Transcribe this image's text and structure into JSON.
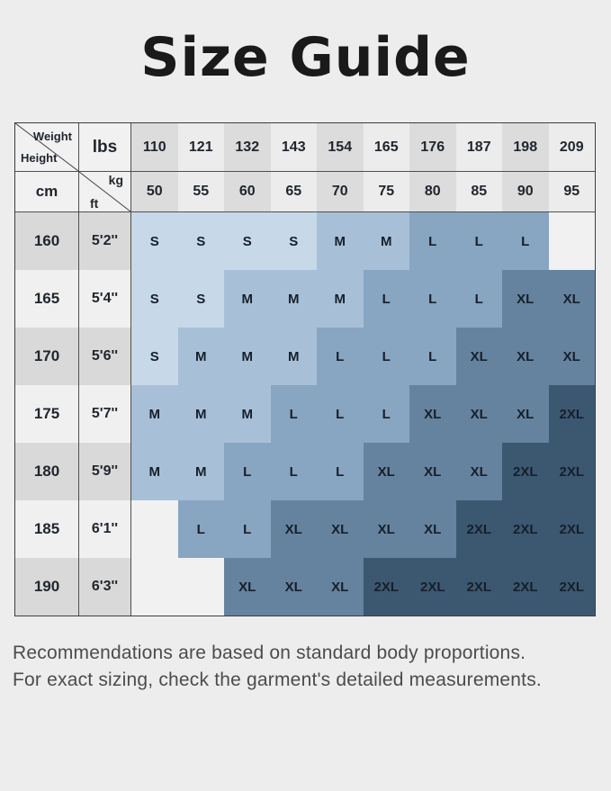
{
  "title": "Size Guide",
  "table": {
    "corner": {
      "top_label": "Weight",
      "bottom_label": "Height"
    },
    "weight_unit_label": "lbs",
    "height_unit_label": "cm",
    "kg_label": "kg",
    "ft_label": "ft",
    "weights_lbs": [
      "110",
      "121",
      "132",
      "143",
      "154",
      "165",
      "176",
      "187",
      "198",
      "209"
    ],
    "weights_kg": [
      "50",
      "55",
      "60",
      "65",
      "70",
      "75",
      "80",
      "85",
      "90",
      "95"
    ],
    "rows": [
      {
        "cm": "160",
        "ft": "5'2''",
        "sizes": [
          "S",
          "S",
          "S",
          "S",
          "M",
          "M",
          "L",
          "L",
          "L",
          ""
        ]
      },
      {
        "cm": "165",
        "ft": "5'4''",
        "sizes": [
          "S",
          "S",
          "M",
          "M",
          "M",
          "L",
          "L",
          "L",
          "XL",
          "XL"
        ]
      },
      {
        "cm": "170",
        "ft": "5'6''",
        "sizes": [
          "S",
          "M",
          "M",
          "M",
          "L",
          "L",
          "L",
          "XL",
          "XL",
          "XL"
        ]
      },
      {
        "cm": "175",
        "ft": "5'7''",
        "sizes": [
          "M",
          "M",
          "M",
          "L",
          "L",
          "L",
          "XL",
          "XL",
          "XL",
          "2XL"
        ]
      },
      {
        "cm": "180",
        "ft": "5'9''",
        "sizes": [
          "M",
          "M",
          "L",
          "L",
          "L",
          "XL",
          "XL",
          "XL",
          "2XL",
          "2XL"
        ]
      },
      {
        "cm": "185",
        "ft": "6'1''",
        "sizes": [
          "",
          "L",
          "L",
          "XL",
          "XL",
          "XL",
          "XL",
          "2XL",
          "2XL",
          "2XL"
        ]
      },
      {
        "cm": "190",
        "ft": "6'3''",
        "sizes": [
          "",
          "",
          "XL",
          "XL",
          "XL",
          "2XL",
          "2XL",
          "2XL",
          "2XL",
          "2XL"
        ]
      }
    ],
    "colors": {
      "size_S": "#c7d8e8",
      "size_M": "#a8c0d7",
      "size_L": "#88a5c1",
      "size_XL": "#65839e",
      "size_2XL": "#3c5871",
      "empty_cell": "#f1f1f1",
      "header_stripe_dark": "#dcdcdc",
      "header_stripe_light": "#ececec",
      "left_row_dark": "#d9d9d9",
      "left_row_light": "#f0f0f0",
      "header_left_bg": "#f1f1f1"
    }
  },
  "footer": {
    "line1": "Recommendations are based on standard body proportions.",
    "line2": "For exact sizing, check the garment's detailed measurements."
  },
  "chart_data": {
    "type": "table",
    "title": "Size Guide",
    "weight_lbs": [
      110,
      121,
      132,
      143,
      154,
      165,
      176,
      187,
      198,
      209
    ],
    "weight_kg": [
      50,
      55,
      60,
      65,
      70,
      75,
      80,
      85,
      90,
      95
    ],
    "height_cm": [
      160,
      165,
      170,
      175,
      180,
      185,
      190
    ],
    "height_ft": [
      "5'2''",
      "5'4''",
      "5'6''",
      "5'7''",
      "5'9''",
      "6'1''",
      "6'3''"
    ],
    "legend": [
      "S",
      "M",
      "L",
      "XL",
      "2XL"
    ],
    "size_matrix": [
      [
        "S",
        "S",
        "S",
        "S",
        "M",
        "M",
        "L",
        "L",
        "L",
        null
      ],
      [
        "S",
        "S",
        "M",
        "M",
        "M",
        "L",
        "L",
        "L",
        "XL",
        "XL"
      ],
      [
        "S",
        "M",
        "M",
        "M",
        "L",
        "L",
        "L",
        "XL",
        "XL",
        "XL"
      ],
      [
        "M",
        "M",
        "M",
        "L",
        "L",
        "L",
        "XL",
        "XL",
        "XL",
        "2XL"
      ],
      [
        "M",
        "M",
        "L",
        "L",
        "L",
        "XL",
        "XL",
        "XL",
        "2XL",
        "2XL"
      ],
      [
        null,
        "L",
        "L",
        "XL",
        "XL",
        "XL",
        "XL",
        "2XL",
        "2XL",
        "2XL"
      ],
      [
        null,
        null,
        "XL",
        "XL",
        "XL",
        "2XL",
        "2XL",
        "2XL",
        "2XL",
        "2XL"
      ]
    ],
    "notes": "Recommendations are based on standard body proportions. For exact sizing, check the garment's detailed measurements."
  }
}
